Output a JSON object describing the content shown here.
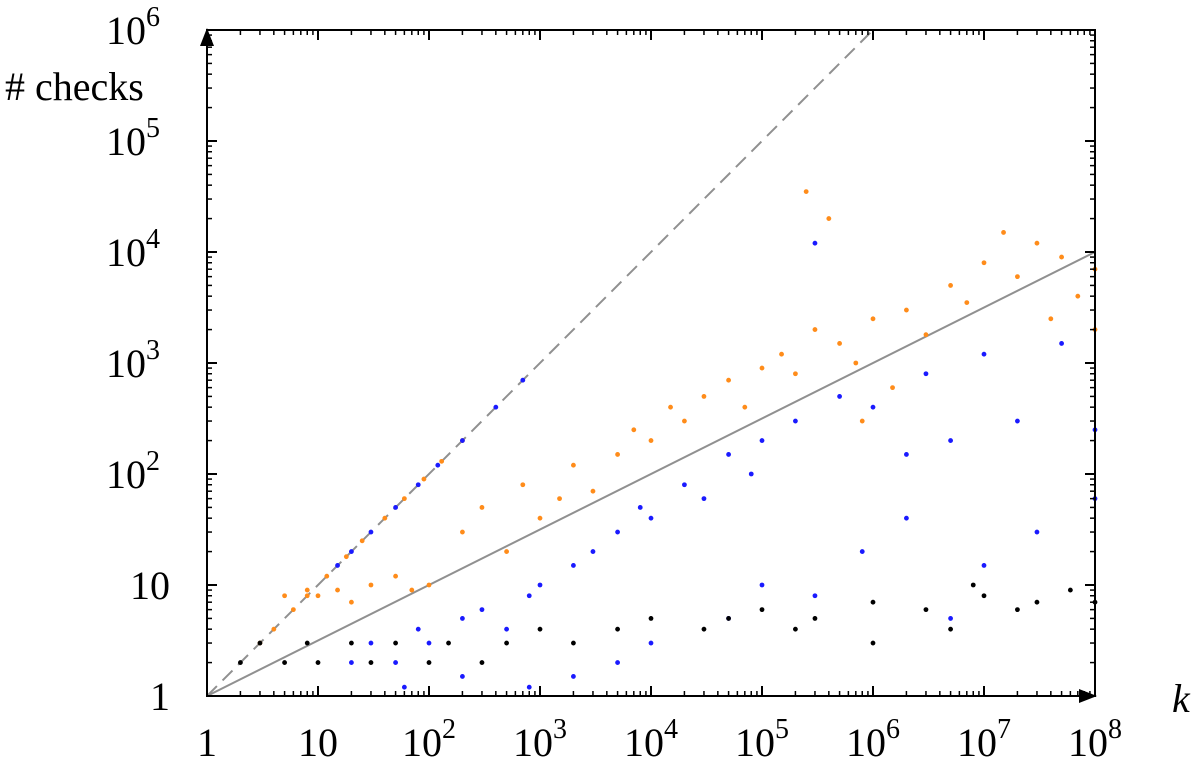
{
  "chart_data": {
    "type": "scatter",
    "title": "",
    "xlabel": "k",
    "ylabel": "# checks",
    "xscale": "log",
    "yscale": "log",
    "xlim": [
      1,
      100000000
    ],
    "ylim": [
      1,
      1000000
    ],
    "grid": false,
    "legend": "none",
    "x_ticks": [
      {
        "value": 1,
        "base": "1",
        "exp": ""
      },
      {
        "value": 10,
        "base": "10",
        "exp": ""
      },
      {
        "value": 100,
        "base": "10",
        "exp": "2"
      },
      {
        "value": 1000,
        "base": "10",
        "exp": "3"
      },
      {
        "value": 10000,
        "base": "10",
        "exp": "4"
      },
      {
        "value": 100000,
        "base": "10",
        "exp": "5"
      },
      {
        "value": 1000000,
        "base": "10",
        "exp": "6"
      },
      {
        "value": 10000000,
        "base": "10",
        "exp": "7"
      },
      {
        "value": 100000000,
        "base": "10",
        "exp": "8"
      }
    ],
    "y_ticks": [
      {
        "value": 1,
        "base": "1",
        "exp": ""
      },
      {
        "value": 10,
        "base": "10",
        "exp": ""
      },
      {
        "value": 100,
        "base": "10",
        "exp": "2"
      },
      {
        "value": 1000,
        "base": "10",
        "exp": "3"
      },
      {
        "value": 10000,
        "base": "10",
        "exp": "4"
      },
      {
        "value": 100000,
        "base": "10",
        "exp": "5"
      },
      {
        "value": 1000000,
        "base": "10",
        "exp": "6"
      }
    ],
    "reference_lines": [
      {
        "style": "dashed",
        "color": "#909090",
        "x": [
          1,
          1000000
        ],
        "y": [
          1,
          1000000
        ]
      },
      {
        "style": "solid",
        "color": "#909090",
        "x": [
          1,
          100000000
        ],
        "y": [
          1,
          10000
        ]
      }
    ],
    "series": [
      {
        "color": "#ff8c1a",
        "points": [
          [
            3,
            3
          ],
          [
            4,
            4
          ],
          [
            6,
            6
          ],
          [
            8,
            8
          ],
          [
            12,
            12
          ],
          [
            18,
            18
          ],
          [
            25,
            25
          ],
          [
            40,
            40
          ],
          [
            60,
            60
          ],
          [
            90,
            90
          ],
          [
            130,
            130
          ],
          [
            200,
            200
          ],
          [
            5,
            8
          ],
          [
            8,
            9
          ],
          [
            10,
            8
          ],
          [
            15,
            9
          ],
          [
            20,
            7
          ],
          [
            30,
            10
          ],
          [
            50,
            12
          ],
          [
            70,
            9
          ],
          [
            100,
            10
          ],
          [
            200,
            30
          ],
          [
            300,
            50
          ],
          [
            500,
            20
          ],
          [
            700,
            80
          ],
          [
            1000,
            40
          ],
          [
            1500,
            60
          ],
          [
            2000,
            120
          ],
          [
            3000,
            70
          ],
          [
            5000,
            150
          ],
          [
            7000,
            250
          ],
          [
            10000,
            200
          ],
          [
            15000,
            400
          ],
          [
            20000,
            300
          ],
          [
            30000,
            500
          ],
          [
            50000,
            700
          ],
          [
            70000,
            400
          ],
          [
            100000,
            900
          ],
          [
            150000,
            1200
          ],
          [
            200000,
            800
          ],
          [
            250000,
            35000
          ],
          [
            400000,
            20000
          ],
          [
            300000,
            2000
          ],
          [
            500000,
            1500
          ],
          [
            700000,
            1000
          ],
          [
            1000000,
            2500
          ],
          [
            2000000,
            3000
          ],
          [
            3000000,
            1800
          ],
          [
            5000000,
            5000
          ],
          [
            7000000,
            3500
          ],
          [
            10000000,
            8000
          ],
          [
            15000000,
            15000
          ],
          [
            20000000,
            6000
          ],
          [
            30000000,
            12000
          ],
          [
            50000000,
            9000
          ],
          [
            70000000,
            4000
          ],
          [
            100000000,
            7000
          ],
          [
            100000000,
            2000
          ],
          [
            40000000,
            2500
          ],
          [
            1500000,
            600
          ],
          [
            800000,
            300
          ]
        ]
      },
      {
        "color": "#1a1aff",
        "points": [
          [
            15,
            15
          ],
          [
            20,
            20
          ],
          [
            30,
            30
          ],
          [
            50,
            50
          ],
          [
            80,
            80
          ],
          [
            120,
            120
          ],
          [
            200,
            200
          ],
          [
            400,
            400
          ],
          [
            700,
            700
          ],
          [
            20,
            2
          ],
          [
            30,
            3
          ],
          [
            50,
            2
          ],
          [
            80,
            4
          ],
          [
            100,
            3
          ],
          [
            200,
            5
          ],
          [
            300,
            6
          ],
          [
            500,
            4
          ],
          [
            800,
            8
          ],
          [
            1000,
            10
          ],
          [
            2000,
            15
          ],
          [
            3000,
            20
          ],
          [
            5000,
            30
          ],
          [
            8000,
            50
          ],
          [
            10000,
            40
          ],
          [
            20000,
            80
          ],
          [
            30000,
            60
          ],
          [
            50000,
            150
          ],
          [
            80000,
            100
          ],
          [
            100000,
            200
          ],
          [
            200000,
            300
          ],
          [
            300000,
            12000
          ],
          [
            500000,
            500
          ],
          [
            1000000,
            400
          ],
          [
            2000000,
            150
          ],
          [
            3000000,
            800
          ],
          [
            5000000,
            200
          ],
          [
            10000000,
            1200
          ],
          [
            20000000,
            300
          ],
          [
            50000000,
            1500
          ],
          [
            100000000,
            250
          ],
          [
            100000000,
            60
          ],
          [
            30000000,
            30
          ],
          [
            10000000,
            15
          ],
          [
            5000000,
            5
          ],
          [
            2000000,
            40
          ],
          [
            800000,
            20
          ],
          [
            300000,
            8
          ],
          [
            100000,
            10
          ],
          [
            50000,
            5
          ],
          [
            10000,
            3
          ],
          [
            5000,
            2
          ],
          [
            2000,
            1.5
          ],
          [
            800,
            1.2
          ],
          [
            200,
            1.5
          ],
          [
            60,
            1.2
          ]
        ]
      },
      {
        "color": "#000000",
        "points": [
          [
            2,
            2
          ],
          [
            3,
            3
          ],
          [
            5,
            2
          ],
          [
            8,
            3
          ],
          [
            10,
            2
          ],
          [
            20,
            3
          ],
          [
            30,
            2
          ],
          [
            50,
            3
          ],
          [
            100,
            2
          ],
          [
            150,
            3
          ],
          [
            300,
            2
          ],
          [
            500,
            3
          ],
          [
            1000,
            4
          ],
          [
            2000,
            3
          ],
          [
            5000,
            4
          ],
          [
            10000,
            5
          ],
          [
            30000,
            4
          ],
          [
            50000,
            5
          ],
          [
            100000,
            6
          ],
          [
            300000,
            5
          ],
          [
            1000000,
            7
          ],
          [
            3000000,
            6
          ],
          [
            10000000,
            8
          ],
          [
            30000000,
            7
          ],
          [
            100000000,
            7
          ],
          [
            1000000,
            3
          ],
          [
            5000000,
            4
          ],
          [
            20000000,
            6
          ],
          [
            60000000,
            9
          ],
          [
            8000000,
            10
          ],
          [
            200000,
            4
          ]
        ]
      }
    ]
  }
}
